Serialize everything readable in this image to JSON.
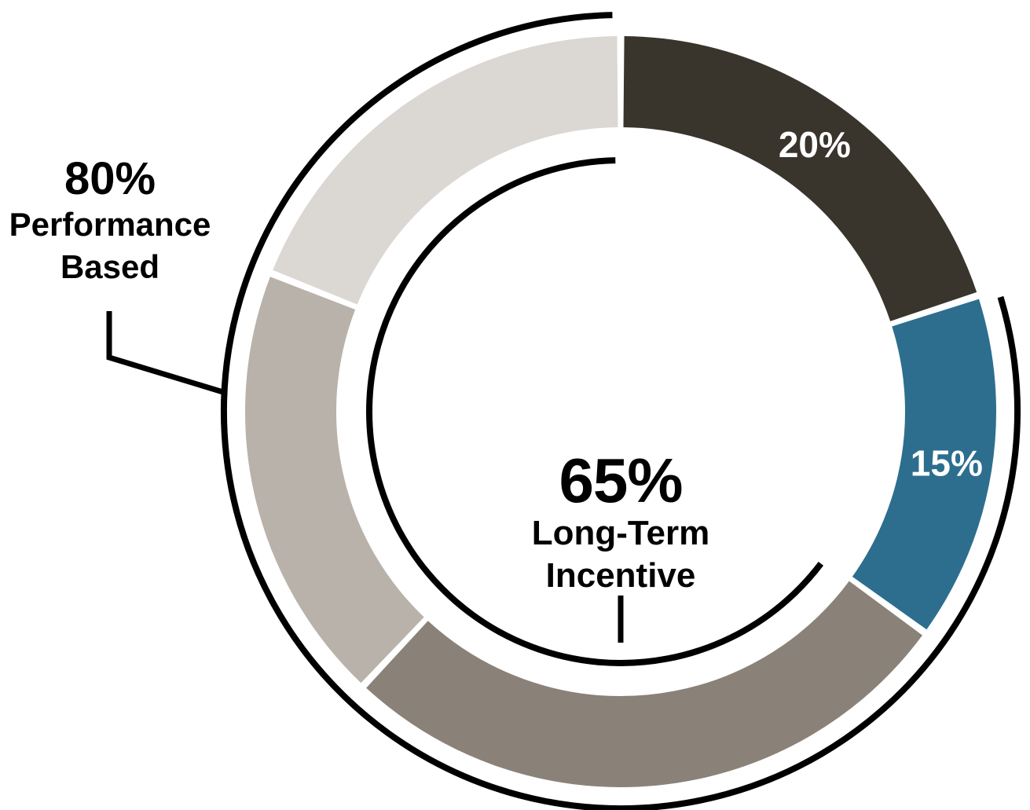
{
  "chart_data": {
    "type": "pie",
    "subtype": "donut",
    "title": "",
    "direction": "clockwise",
    "start_angle_deg": 0,
    "segments": [
      {
        "name": "segment-1",
        "value": 20,
        "label": "20%",
        "color": "#39342c",
        "label_color": "#ffffff"
      },
      {
        "name": "segment-2",
        "value": 15,
        "label": "15%",
        "color": "#2d6e8e",
        "label_color": "#ffffff"
      },
      {
        "name": "segment-3",
        "value": 27,
        "label": "",
        "color": "#8a8178",
        "label_color": "#ffffff"
      },
      {
        "name": "segment-4",
        "value": 19,
        "label": "",
        "color": "#b9b2aa",
        "label_color": "#ffffff"
      },
      {
        "name": "segment-5",
        "value": 19,
        "label": "",
        "color": "#dbd7d2",
        "label_color": "#ffffff"
      }
    ],
    "center_label": {
      "percent": "65%",
      "line1": "Long-Term",
      "line2": "Incentive"
    },
    "outer_bracket": {
      "percent": "80%",
      "line1": "Performance",
      "line2": "Based",
      "span_percent": 80
    },
    "inner_bracket": {
      "span_percent": 65
    },
    "colors": {
      "bracket": "#000000",
      "background": "#ffffff"
    },
    "legend": "none",
    "grid": "off"
  }
}
